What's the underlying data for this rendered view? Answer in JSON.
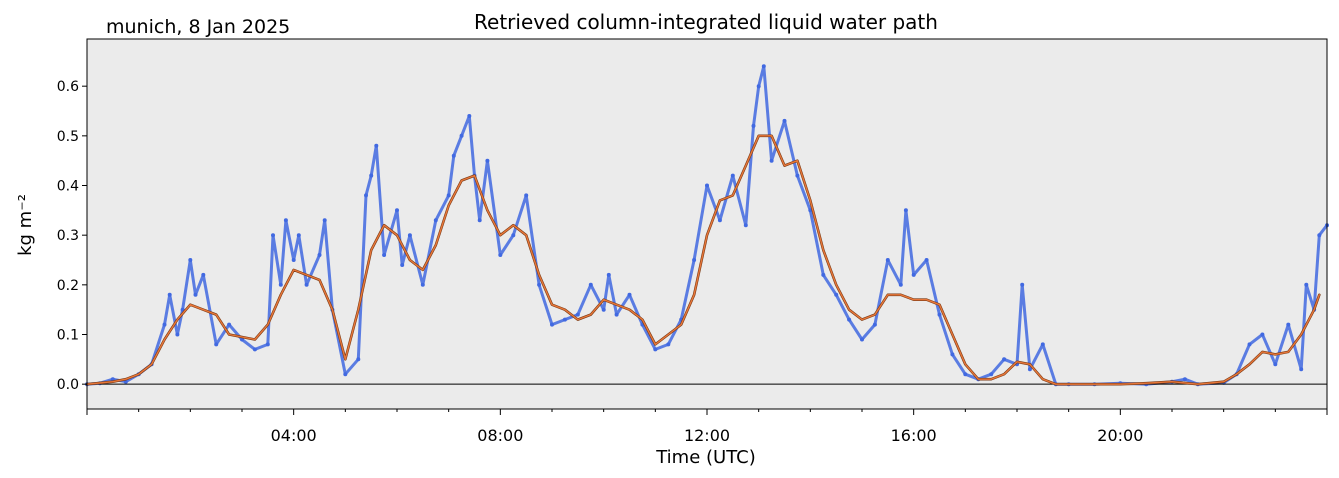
{
  "chart_data": {
    "type": "line",
    "title": "Retrieved column-integrated liquid water path",
    "subtitle": "munich, 8 Jan 2025",
    "xlabel": "Time (UTC)",
    "ylabel": "kg m⁻²",
    "x_unit": "hours UTC",
    "xlim": [
      0,
      24
    ],
    "ylim": [
      -0.05,
      0.695
    ],
    "x_ticks": [
      0,
      4,
      8,
      12,
      16,
      20,
      24
    ],
    "x_tick_labels": [
      "",
      "04:00",
      "08:00",
      "12:00",
      "16:00",
      "20:00",
      ""
    ],
    "x_minor_ticks": [
      1,
      2,
      3,
      5,
      6,
      7,
      9,
      10,
      11,
      13,
      14,
      15,
      17,
      18,
      19,
      21,
      22,
      23
    ],
    "y_ticks": [
      0.0,
      0.1,
      0.2,
      0.3,
      0.4,
      0.5,
      0.6
    ],
    "y_tick_labels": [
      "0.0",
      "0.1",
      "0.2",
      "0.3",
      "0.4",
      "0.5",
      "0.6"
    ],
    "zero_line": true,
    "grid": false,
    "legend": "none",
    "colors": {
      "background": "#ebebeb",
      "raw": "#4169e1",
      "smooth": "#e8773a",
      "zero_line": "#000000"
    },
    "series": [
      {
        "style": "scatter",
        "x": [
          0.0,
          0.25,
          0.5,
          0.75,
          1.0,
          1.25,
          1.5,
          1.6,
          1.75,
          1.85,
          2.0,
          2.1,
          2.25,
          2.5,
          2.75,
          3.0,
          3.25,
          3.5,
          3.6,
          3.75,
          3.85,
          4.0,
          4.1,
          4.25,
          4.5,
          4.6,
          4.75,
          5.0,
          5.25,
          5.4,
          5.5,
          5.6,
          5.75,
          6.0,
          6.1,
          6.25,
          6.5,
          6.75,
          7.0,
          7.1,
          7.25,
          7.4,
          7.5,
          7.6,
          7.75,
          8.0,
          8.25,
          8.5,
          8.75,
          9.0,
          9.25,
          9.5,
          9.75,
          10.0,
          10.1,
          10.25,
          10.5,
          10.75,
          11.0,
          11.25,
          11.5,
          11.75,
          12.0,
          12.25,
          12.5,
          12.75,
          12.9,
          13.0,
          13.1,
          13.25,
          13.5,
          13.75,
          14.0,
          14.25,
          14.5,
          14.75,
          15.0,
          15.25,
          15.5,
          15.75,
          15.85,
          16.0,
          16.25,
          16.5,
          16.75,
          17.0,
          17.25,
          17.5,
          17.75,
          18.0,
          18.1,
          18.25,
          18.5,
          18.75,
          19.0,
          19.5,
          20.0,
          20.5,
          21.0,
          21.25,
          21.5,
          22.0,
          22.25,
          22.5,
          22.75,
          23.0,
          23.25,
          23.5,
          23.6,
          23.75,
          23.85,
          24.0
        ],
        "values": [
          0.0,
          0.002,
          0.01,
          0.005,
          0.02,
          0.04,
          0.12,
          0.18,
          0.1,
          0.15,
          0.25,
          0.18,
          0.22,
          0.08,
          0.12,
          0.09,
          0.07,
          0.08,
          0.3,
          0.2,
          0.33,
          0.25,
          0.3,
          0.2,
          0.26,
          0.33,
          0.15,
          0.02,
          0.05,
          0.38,
          0.42,
          0.48,
          0.26,
          0.35,
          0.24,
          0.3,
          0.2,
          0.33,
          0.38,
          0.46,
          0.5,
          0.54,
          0.42,
          0.33,
          0.45,
          0.26,
          0.3,
          0.38,
          0.2,
          0.12,
          0.13,
          0.14,
          0.2,
          0.15,
          0.22,
          0.14,
          0.18,
          0.12,
          0.07,
          0.08,
          0.13,
          0.25,
          0.4,
          0.33,
          0.42,
          0.32,
          0.52,
          0.6,
          0.64,
          0.45,
          0.53,
          0.42,
          0.35,
          0.22,
          0.18,
          0.13,
          0.09,
          0.12,
          0.25,
          0.2,
          0.35,
          0.22,
          0.25,
          0.14,
          0.06,
          0.02,
          0.01,
          0.02,
          0.05,
          0.04,
          0.2,
          0.03,
          0.08,
          0.0,
          0.0,
          0.0,
          0.002,
          0.0,
          0.005,
          0.01,
          0.0,
          0.003,
          0.02,
          0.08,
          0.1,
          0.04,
          0.12,
          0.03,
          0.2,
          0.15,
          0.3,
          0.32
        ]
      },
      {
        "style": "line",
        "x": [
          0.0,
          0.5,
          0.75,
          1.0,
          1.25,
          1.5,
          1.75,
          2.0,
          2.25,
          2.5,
          2.75,
          3.0,
          3.25,
          3.5,
          3.75,
          4.0,
          4.25,
          4.5,
          4.75,
          5.0,
          5.25,
          5.5,
          5.75,
          6.0,
          6.25,
          6.5,
          6.75,
          7.0,
          7.25,
          7.5,
          7.75,
          8.0,
          8.25,
          8.5,
          8.75,
          9.0,
          9.25,
          9.5,
          9.75,
          10.0,
          10.25,
          10.5,
          10.75,
          11.0,
          11.25,
          11.5,
          11.75,
          12.0,
          12.25,
          12.5,
          12.75,
          13.0,
          13.25,
          13.5,
          13.75,
          14.0,
          14.25,
          14.5,
          14.75,
          15.0,
          15.25,
          15.5,
          15.75,
          16.0,
          16.25,
          16.5,
          16.75,
          17.0,
          17.25,
          17.5,
          17.75,
          18.0,
          18.25,
          18.5,
          18.75,
          19.0,
          19.5,
          20.0,
          20.5,
          21.0,
          21.5,
          22.0,
          22.25,
          22.5,
          22.75,
          23.0,
          23.25,
          23.5,
          23.75,
          23.85
        ],
        "values": [
          0.0,
          0.005,
          0.01,
          0.02,
          0.04,
          0.09,
          0.13,
          0.16,
          0.15,
          0.14,
          0.1,
          0.095,
          0.09,
          0.12,
          0.18,
          0.23,
          0.22,
          0.21,
          0.15,
          0.05,
          0.15,
          0.27,
          0.32,
          0.3,
          0.25,
          0.23,
          0.28,
          0.36,
          0.41,
          0.42,
          0.35,
          0.3,
          0.32,
          0.3,
          0.22,
          0.16,
          0.15,
          0.13,
          0.14,
          0.17,
          0.16,
          0.15,
          0.13,
          0.08,
          0.1,
          0.12,
          0.18,
          0.3,
          0.37,
          0.38,
          0.44,
          0.5,
          0.5,
          0.44,
          0.45,
          0.37,
          0.27,
          0.2,
          0.15,
          0.13,
          0.14,
          0.18,
          0.18,
          0.17,
          0.17,
          0.16,
          0.1,
          0.04,
          0.01,
          0.01,
          0.02,
          0.045,
          0.04,
          0.01,
          0.0,
          0.0,
          0.0,
          0.0,
          0.002,
          0.005,
          0.0,
          0.005,
          0.02,
          0.04,
          0.065,
          0.06,
          0.065,
          0.1,
          0.15,
          0.18
        ]
      }
    ]
  }
}
